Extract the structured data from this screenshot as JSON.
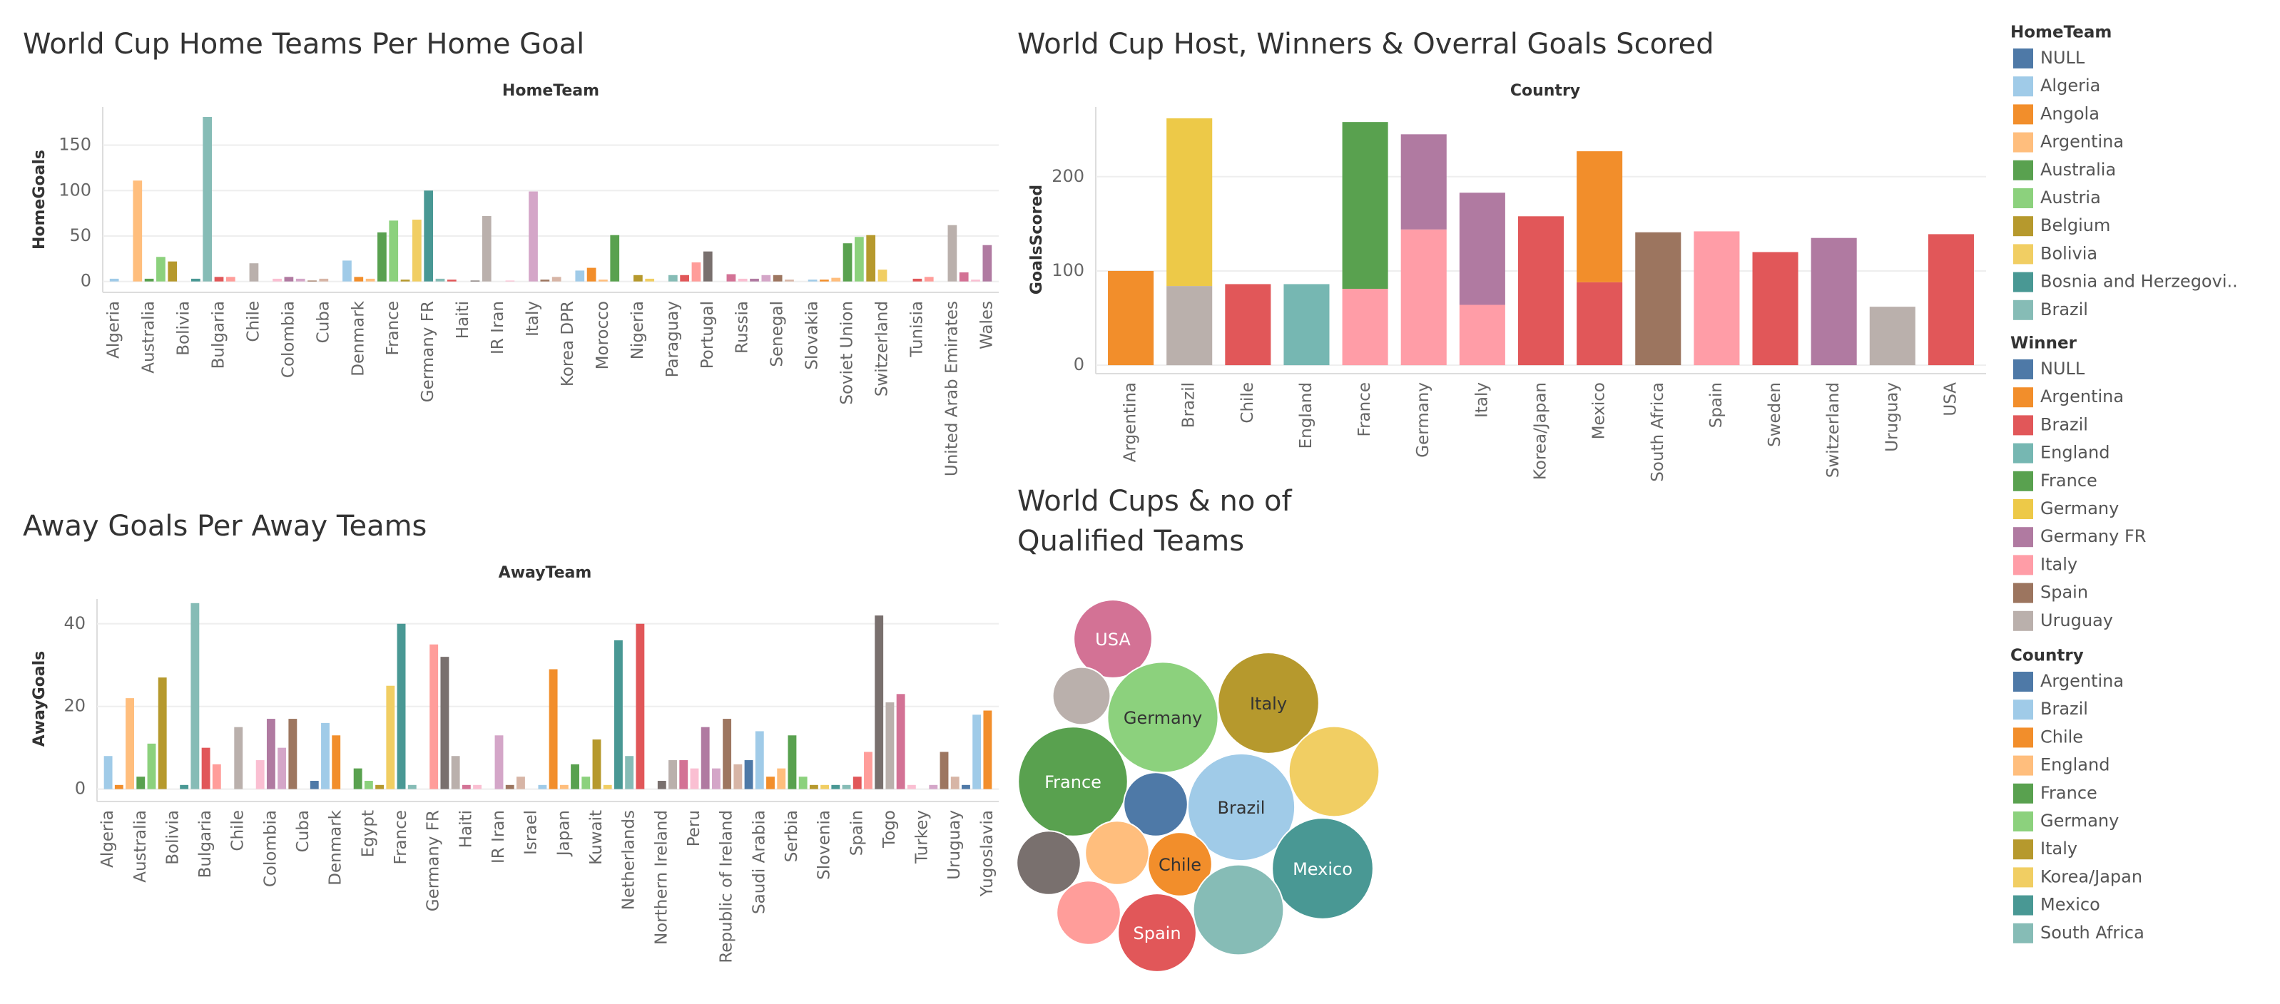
{
  "chart_data": [
    {
      "type": "bar",
      "title": "World Cup Home Teams Per Home Goal",
      "x_header": "HomeTeam",
      "y_label": "HomeGoals",
      "categories": [
        "Algeria",
        null,
        null,
        "Australia",
        null,
        null,
        "Bolivia",
        null,
        null,
        "Bulgaria",
        null,
        null,
        "Chile",
        null,
        null,
        "Colombia",
        null,
        null,
        "Cuba",
        null,
        null,
        "Denmark",
        null,
        null,
        "France",
        null,
        null,
        "Germany FR",
        null,
        null,
        "Haiti",
        null,
        null,
        "IR Iran",
        null,
        null,
        "Italy",
        null,
        null,
        "Korea DPR",
        null,
        null,
        "Morocco",
        null,
        null,
        "Nigeria",
        null,
        null,
        "Paraguay",
        null,
        null,
        "Portugal",
        null,
        null,
        "Russia",
        null,
        null,
        "Senegal",
        null,
        null,
        "Slovakia",
        null,
        null,
        "Soviet Union",
        null,
        null,
        "Switzerland",
        null,
        null,
        "Tunisia",
        null,
        null,
        "United Arab Emirates",
        null,
        null,
        "Wales"
      ],
      "values": [
        3,
        0,
        111,
        3,
        27,
        22,
        0,
        3,
        181,
        5,
        5,
        0,
        20,
        0,
        3,
        5,
        3,
        1,
        3,
        0,
        23,
        5,
        3,
        54,
        67,
        2,
        68,
        100,
        3,
        2,
        0,
        1,
        72,
        0,
        1,
        0,
        99,
        2,
        5,
        0,
        12,
        15,
        2,
        51,
        0,
        7,
        3,
        0,
        7,
        7,
        21,
        33,
        0,
        8,
        3,
        3,
        7,
        7,
        2,
        0,
        2,
        2,
        4,
        42,
        49,
        51,
        13,
        0,
        0,
        3,
        5,
        0,
        62,
        10,
        2,
        40
      ],
      "palette": [
        "#a0cbe8",
        "#f28e2b",
        "#ffbe7d",
        "#59a14f",
        "#8cd17d",
        "#b6992d",
        "#f1ce63",
        "#499894",
        "#86bcb6",
        "#e15759",
        "#ff9d9a",
        "#79706e",
        "#bab0ac",
        "#d37295",
        "#fabfd2",
        "#b07aa1",
        "#d4a6c8",
        "#9d7660",
        "#d7b5a6",
        "#4e79a7"
      ],
      "ylim": [
        -12,
        192
      ],
      "yticks": [
        0,
        50,
        100,
        150
      ],
      "grid": true
    },
    {
      "type": "stacked_bar",
      "title": "World Cup Host, Winners & Overral Goals Scored",
      "x_header": "Country",
      "y_label": "GoalsScored",
      "categories": [
        "Argentina",
        "Brazil",
        "Chile",
        "England",
        "France",
        "Germany",
        "Italy",
        "Korea/Japan",
        "Mexico",
        "South Africa",
        "Spain",
        "Sweden",
        "Switzerland",
        "Uruguay",
        "USA"
      ],
      "series": [
        {
          "name": "Uruguay",
          "color": "#bab0ac",
          "values": [
            null,
            84,
            null,
            null,
            null,
            null,
            null,
            null,
            null,
            null,
            null,
            null,
            null,
            62,
            null
          ]
        },
        {
          "name": "Brazil",
          "color": "#e15759",
          "values": [
            null,
            null,
            86,
            null,
            null,
            null,
            null,
            158,
            88,
            null,
            null,
            120,
            null,
            null,
            139
          ]
        },
        {
          "name": "Italy",
          "color": "#ff9da7",
          "values": [
            null,
            null,
            null,
            null,
            81,
            144,
            64,
            null,
            null,
            null,
            142,
            null,
            null,
            null,
            null
          ]
        },
        {
          "name": "England",
          "color": "#76b7b2",
          "values": [
            null,
            null,
            null,
            86,
            null,
            null,
            null,
            null,
            null,
            null,
            null,
            null,
            null,
            null,
            null
          ]
        },
        {
          "name": "Spain",
          "color": "#9c755f",
          "values": [
            null,
            null,
            null,
            null,
            null,
            null,
            null,
            null,
            null,
            141,
            null,
            null,
            null,
            null,
            null
          ]
        },
        {
          "name": "Argentina",
          "color": "#f28e2b",
          "values": [
            100,
            null,
            null,
            null,
            null,
            null,
            null,
            null,
            139,
            null,
            null,
            null,
            null,
            null,
            null
          ]
        },
        {
          "name": "Germany",
          "color": "#edc948",
          "values": [
            null,
            178,
            null,
            null,
            null,
            null,
            null,
            null,
            null,
            null,
            null,
            null,
            null,
            null,
            null
          ]
        },
        {
          "name": "France",
          "color": "#59a14f",
          "values": [
            null,
            null,
            null,
            null,
            177,
            null,
            null,
            null,
            null,
            null,
            null,
            null,
            null,
            null,
            null
          ]
        },
        {
          "name": "Germany FR",
          "color": "#b07aa1",
          "values": [
            null,
            null,
            null,
            null,
            null,
            101,
            119,
            null,
            null,
            null,
            null,
            null,
            135,
            null,
            null
          ]
        }
      ],
      "ylim": [
        -9,
        274
      ],
      "yticks": [
        0,
        100,
        200
      ],
      "grid": true
    },
    {
      "type": "bar",
      "title": "Away Goals Per Away Teams",
      "x_header": "AwayTeam",
      "y_label": "AwayGoals",
      "categories": [
        "Algeria",
        null,
        null,
        "Australia",
        null,
        null,
        "Bolivia",
        null,
        null,
        "Bulgaria",
        null,
        null,
        "Chile",
        null,
        null,
        "Colombia",
        null,
        null,
        "Cuba",
        null,
        null,
        "Denmark",
        null,
        null,
        "Egypt",
        null,
        null,
        "France",
        null,
        null,
        "Germany FR",
        null,
        null,
        "Haiti",
        null,
        null,
        "IR Iran",
        null,
        null,
        "Israel",
        null,
        null,
        "Japan",
        null,
        null,
        "Kuwait",
        null,
        null,
        "Netherlands",
        null,
        null,
        "Northern Ireland",
        null,
        null,
        "Peru",
        null,
        null,
        "Republic of Ireland",
        null,
        null,
        "Saudi Arabia",
        null,
        null,
        "Serbia",
        null,
        null,
        "Slovenia",
        null,
        null,
        "Spain",
        null,
        null,
        "Togo",
        null,
        null,
        "Turkey",
        null,
        null,
        "Uruguay",
        null,
        null,
        "Yugoslavia"
      ],
      "values": [
        8,
        1,
        22,
        3,
        11,
        27,
        0,
        1,
        45,
        10,
        6,
        0,
        15,
        0,
        7,
        17,
        10,
        17,
        0,
        2,
        16,
        13,
        0,
        5,
        2,
        1,
        25,
        40,
        1,
        0,
        35,
        32,
        8,
        1,
        1,
        0,
        13,
        1,
        3,
        0,
        1,
        29,
        1,
        6,
        3,
        12,
        1,
        36,
        8,
        40,
        0,
        2,
        7,
        7,
        5,
        15,
        5,
        17,
        6,
        7,
        14,
        3,
        5,
        13,
        3,
        1,
        1,
        1,
        1,
        3,
        9,
        42,
        21,
        23,
        1,
        0,
        1,
        9,
        3,
        1,
        18,
        19
      ],
      "palette": [
        "#a0cbe8",
        "#f28e2b",
        "#ffbe7d",
        "#59a14f",
        "#8cd17d",
        "#b6992d",
        "#f1ce63",
        "#499894",
        "#86bcb6",
        "#e15759",
        "#ff9d9a",
        "#79706e",
        "#bab0ac",
        "#d37295",
        "#fabfd2",
        "#b07aa1",
        "#d4a6c8",
        "#9d7660",
        "#d7b5a6",
        "#4e79a7"
      ],
      "ylim": [
        -3,
        46
      ],
      "yticks": [
        0,
        20,
        40
      ],
      "grid": true
    },
    {
      "type": "bubble",
      "title": "World Cups & no of Qualified Teams",
      "categories": [
        "USA",
        null,
        "Germany",
        "Italy",
        null,
        "France",
        null,
        "Brazil",
        null,
        null,
        "Chile",
        "Mexico",
        null,
        "Spain",
        null
      ],
      "values": [
        24,
        13,
        48,
        40,
        32,
        47,
        16,
        45,
        16,
        16,
        16,
        40,
        16,
        24,
        32
      ],
      "colors": [
        "#d37295",
        "#bab0ac",
        "#8cd17d",
        "#b6992d",
        "#f1ce63",
        "#59a14f",
        "#4e79a7",
        "#a0cbe8",
        "#79706e",
        "#ffbe7d",
        "#f28e2b",
        "#499894",
        "#ff9d9a",
        "#e15759",
        "#86bcb6"
      ]
    }
  ],
  "legends": [
    {
      "title": "HomeTeam",
      "items": [
        {
          "name": "NULL",
          "color": "#4e79a7"
        },
        {
          "name": "Algeria",
          "color": "#a0cbe8"
        },
        {
          "name": "Angola",
          "color": "#f28e2b"
        },
        {
          "name": "Argentina",
          "color": "#ffbe7d"
        },
        {
          "name": "Australia",
          "color": "#59a14f"
        },
        {
          "name": "Austria",
          "color": "#8cd17d"
        },
        {
          "name": "Belgium",
          "color": "#b6992d"
        },
        {
          "name": "Bolivia",
          "color": "#f1ce63"
        },
        {
          "name": "Bosnia and Herzegovi..",
          "color": "#499894"
        },
        {
          "name": "Brazil",
          "color": "#86bcb6"
        }
      ]
    },
    {
      "title": "Winner",
      "items": [
        {
          "name": "NULL",
          "color": "#4e79a7"
        },
        {
          "name": "Argentina",
          "color": "#f28e2b"
        },
        {
          "name": "Brazil",
          "color": "#e15759"
        },
        {
          "name": "England",
          "color": "#76b7b2"
        },
        {
          "name": "France",
          "color": "#59a14f"
        },
        {
          "name": "Germany",
          "color": "#edc948"
        },
        {
          "name": "Germany FR",
          "color": "#b07aa1"
        },
        {
          "name": "Italy",
          "color": "#ff9da7"
        },
        {
          "name": "Spain",
          "color": "#9c755f"
        },
        {
          "name": "Uruguay",
          "color": "#bab0ac"
        }
      ]
    },
    {
      "title": "Country",
      "items": [
        {
          "name": "Argentina",
          "color": "#4e79a7"
        },
        {
          "name": "Brazil",
          "color": "#a0cbe8"
        },
        {
          "name": "Chile",
          "color": "#f28e2b"
        },
        {
          "name": "England",
          "color": "#ffbe7d"
        },
        {
          "name": "France",
          "color": "#59a14f"
        },
        {
          "name": "Germany",
          "color": "#8cd17d"
        },
        {
          "name": "Italy",
          "color": "#b6992d"
        },
        {
          "name": "Korea/Japan",
          "color": "#f1ce63"
        },
        {
          "name": "Mexico",
          "color": "#499894"
        },
        {
          "name": "South Africa",
          "color": "#86bcb6"
        }
      ]
    }
  ]
}
